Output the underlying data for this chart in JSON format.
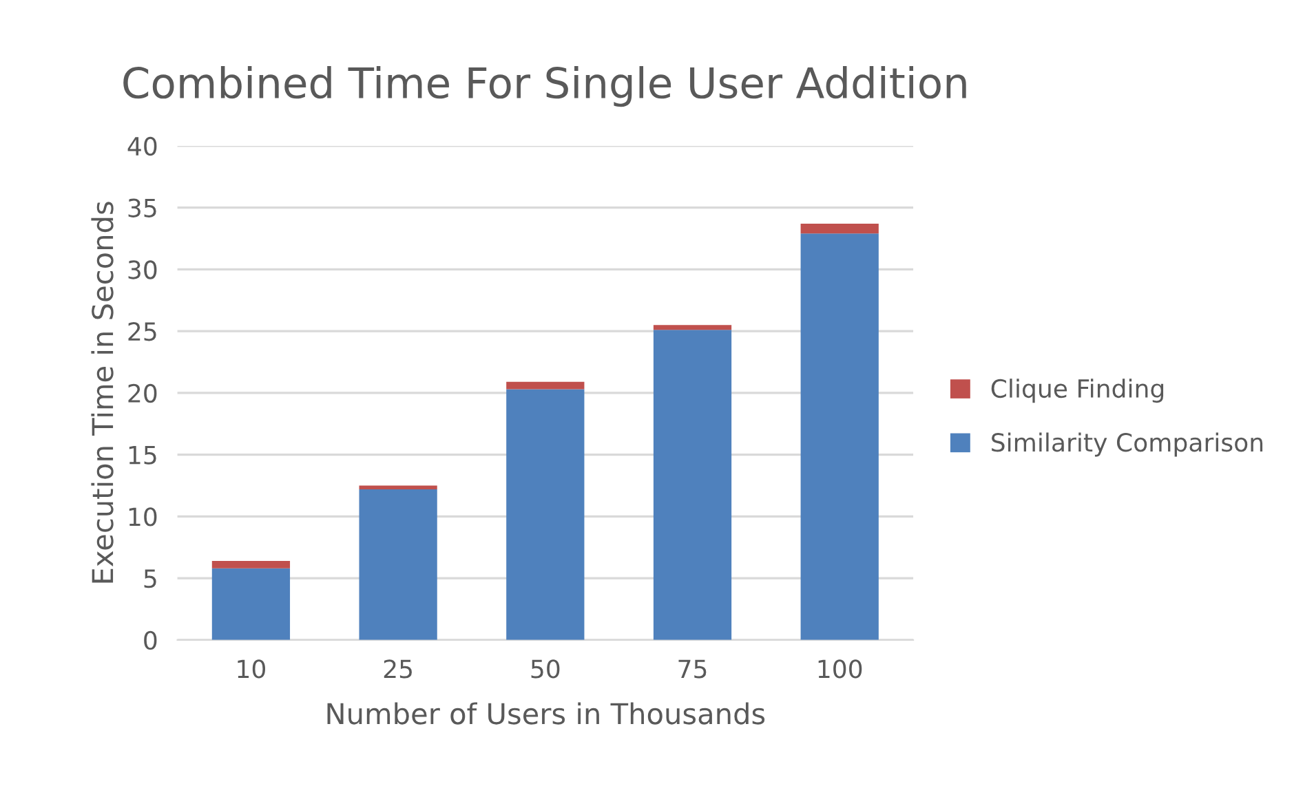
{
  "chart_data": {
    "type": "bar",
    "title": "Combined Time For Single User Addition",
    "xlabel": "Number of Users in Thousands",
    "ylabel": "Execution Time in Seconds",
    "categories": [
      "10",
      "25",
      "50",
      "75",
      "100"
    ],
    "stacked": true,
    "series": [
      {
        "name": "Similarity Comparison",
        "color": "#4f81bd",
        "values": [
          5.8,
          12.2,
          20.3,
          25.1,
          32.9
        ]
      },
      {
        "name": "Clique Finding",
        "color": "#c0504d",
        "values": [
          0.6,
          0.3,
          0.6,
          0.4,
          0.8
        ]
      }
    ],
    "ylim": [
      0,
      40
    ],
    "yticks": [
      0,
      5,
      10,
      15,
      20,
      25,
      30,
      35,
      40
    ],
    "grid": "y",
    "legend": "right"
  }
}
